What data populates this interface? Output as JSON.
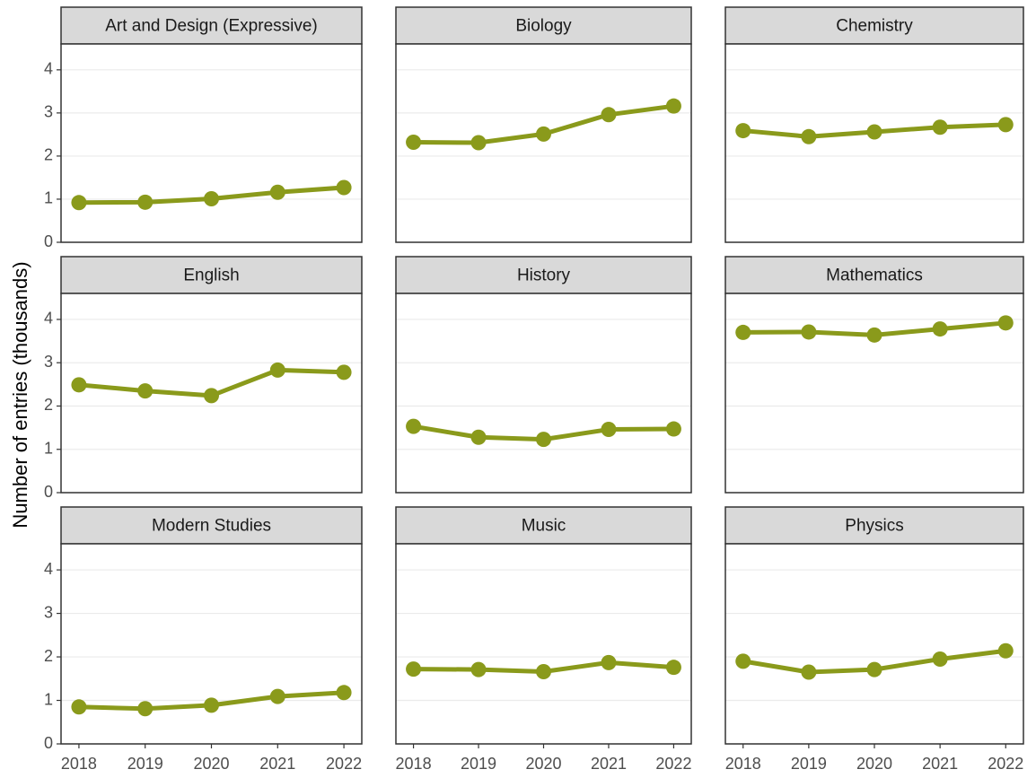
{
  "ylabel": "Number of entries (thousands)",
  "chart_data": [
    {
      "type": "line",
      "title": "Art and Design (Expressive)",
      "x": [
        2018,
        2019,
        2020,
        2021,
        2022
      ],
      "values": [
        0.92,
        0.93,
        1.01,
        1.16,
        1.27
      ],
      "color": "#8a9a1b",
      "xlim": [
        2017.73,
        2022.27
      ],
      "ylim": [
        0,
        4.6
      ],
      "yticks": [
        0,
        1,
        2,
        3,
        4
      ],
      "grid": true
    },
    {
      "type": "line",
      "title": "Biology",
      "x": [
        2018,
        2019,
        2020,
        2021,
        2022
      ],
      "values": [
        2.32,
        2.31,
        2.51,
        2.96,
        3.16
      ],
      "color": "#8a9a1b",
      "xlim": [
        2017.73,
        2022.27
      ],
      "ylim": [
        0,
        4.6
      ],
      "yticks": [
        0,
        1,
        2,
        3,
        4
      ],
      "grid": true
    },
    {
      "type": "line",
      "title": "Chemistry",
      "x": [
        2018,
        2019,
        2020,
        2021,
        2022
      ],
      "values": [
        2.59,
        2.45,
        2.56,
        2.67,
        2.73
      ],
      "color": "#8a9a1b",
      "xlim": [
        2017.73,
        2022.27
      ],
      "ylim": [
        0,
        4.6
      ],
      "yticks": [
        0,
        1,
        2,
        3,
        4
      ],
      "grid": true
    },
    {
      "type": "line",
      "title": "English",
      "x": [
        2018,
        2019,
        2020,
        2021,
        2022
      ],
      "values": [
        2.49,
        2.35,
        2.24,
        2.83,
        2.78
      ],
      "color": "#8a9a1b",
      "xlim": [
        2017.73,
        2022.27
      ],
      "ylim": [
        0,
        4.6
      ],
      "yticks": [
        0,
        1,
        2,
        3,
        4
      ],
      "grid": true
    },
    {
      "type": "line",
      "title": "History",
      "x": [
        2018,
        2019,
        2020,
        2021,
        2022
      ],
      "values": [
        1.53,
        1.28,
        1.23,
        1.46,
        1.47
      ],
      "color": "#8a9a1b",
      "xlim": [
        2017.73,
        2022.27
      ],
      "ylim": [
        0,
        4.6
      ],
      "yticks": [
        0,
        1,
        2,
        3,
        4
      ],
      "grid": true
    },
    {
      "type": "line",
      "title": "Mathematics",
      "x": [
        2018,
        2019,
        2020,
        2021,
        2022
      ],
      "values": [
        3.7,
        3.71,
        3.64,
        3.78,
        3.92
      ],
      "color": "#8a9a1b",
      "xlim": [
        2017.73,
        2022.27
      ],
      "ylim": [
        0,
        4.6
      ],
      "yticks": [
        0,
        1,
        2,
        3,
        4
      ],
      "grid": true
    },
    {
      "type": "line",
      "title": "Modern Studies",
      "x": [
        2018,
        2019,
        2020,
        2021,
        2022
      ],
      "values": [
        0.85,
        0.81,
        0.89,
        1.09,
        1.18
      ],
      "color": "#8a9a1b",
      "xlim": [
        2017.73,
        2022.27
      ],
      "ylim": [
        0,
        4.6
      ],
      "yticks": [
        0,
        1,
        2,
        3,
        4
      ],
      "xticks": [
        2018,
        2019,
        2020,
        2021,
        2022
      ],
      "grid": true
    },
    {
      "type": "line",
      "title": "Music",
      "x": [
        2018,
        2019,
        2020,
        2021,
        2022
      ],
      "values": [
        1.72,
        1.71,
        1.66,
        1.87,
        1.76
      ],
      "color": "#8a9a1b",
      "xlim": [
        2017.73,
        2022.27
      ],
      "ylim": [
        0,
        4.6
      ],
      "yticks": [
        0,
        1,
        2,
        3,
        4
      ],
      "xticks": [
        2018,
        2019,
        2020,
        2021,
        2022
      ],
      "grid": true
    },
    {
      "type": "line",
      "title": "Physics",
      "x": [
        2018,
        2019,
        2020,
        2021,
        2022
      ],
      "values": [
        1.9,
        1.65,
        1.71,
        1.95,
        2.14
      ],
      "color": "#8a9a1b",
      "xlim": [
        2017.73,
        2022.27
      ],
      "ylim": [
        0,
        4.6
      ],
      "yticks": [
        0,
        1,
        2,
        3,
        4
      ],
      "xticks": [
        2018,
        2019,
        2020,
        2021,
        2022
      ],
      "grid": true
    }
  ]
}
